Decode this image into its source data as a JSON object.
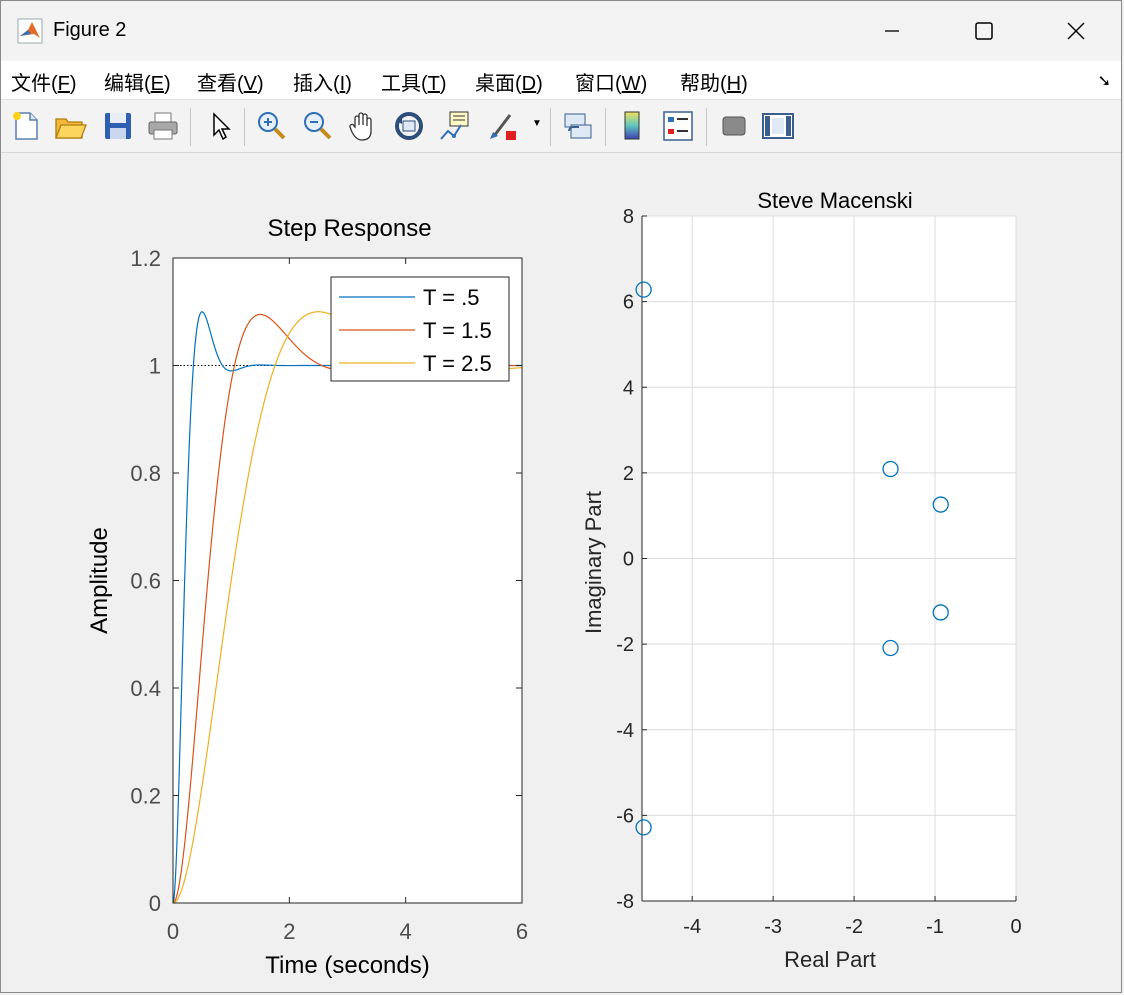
{
  "window": {
    "title": "Figure 2"
  },
  "menu": [
    {
      "label": "文件(",
      "key": "F",
      "tail": ")"
    },
    {
      "label": "编辑(",
      "key": "E",
      "tail": ")"
    },
    {
      "label": "查看(",
      "key": "V",
      "tail": ")"
    },
    {
      "label": "插入(",
      "key": "I",
      "tail": ")"
    },
    {
      "label": "工具(",
      "key": "T",
      "tail": ")"
    },
    {
      "label": "桌面(",
      "key": "D",
      "tail": ")"
    },
    {
      "label": "窗口(",
      "key": "W",
      "tail": ")"
    },
    {
      "label": "帮助(",
      "key": "H",
      "tail": ")"
    }
  ],
  "toolbar": [
    "new-figure-icon",
    "open-file-icon",
    "save-icon",
    "print-icon",
    "pointer-icon",
    "zoom-in-icon",
    "zoom-out-icon",
    "pan-hand-icon",
    "rotate-3d-icon",
    "data-cursor-icon",
    "brush-icon",
    "link-plot-icon",
    "colorbar-icon",
    "legend-icon",
    "hide-plot-tools-icon",
    "show-plot-tools-icon"
  ],
  "chart_data": [
    {
      "type": "line",
      "title": "Step Response",
      "xlabel": "Time (seconds)",
      "ylabel": "Amplitude",
      "xlim": [
        0,
        6
      ],
      "ylim": [
        0,
        1.2
      ],
      "xticks": [
        "0",
        "2",
        "4",
        "6"
      ],
      "yticks": [
        "0",
        "0.2",
        "0.4",
        "0.6",
        "0.8",
        "1",
        "1.2"
      ],
      "legend_position": "top-right",
      "grid": false,
      "series": [
        {
          "name": "T = .5",
          "color": "#0072bd",
          "overshoot": 1.1,
          "peak_time": 0.5
        },
        {
          "name": "T = 1.5",
          "color": "#d95319",
          "overshoot": 1.095,
          "peak_time": 1.5
        },
        {
          "name": "T = 2.5",
          "color": "#edb120",
          "overshoot": 1.1,
          "peak_time": 2.5
        }
      ]
    },
    {
      "type": "scatter",
      "title": "Steve Macenski",
      "xlabel": "Real Part",
      "ylabel": "Imaginary Part",
      "xlim": [
        -4.62,
        0
      ],
      "ylim": [
        -8,
        8
      ],
      "xticks": [
        "-4",
        "-3",
        "-2",
        "-1",
        "0"
      ],
      "yticks": [
        "-8",
        "-6",
        "-4",
        "-2",
        "0",
        "2",
        "4",
        "6",
        "8"
      ],
      "grid": true,
      "marker_color": "#0072bd",
      "points": [
        {
          "x": -4.6,
          "y": 6.28
        },
        {
          "x": -4.6,
          "y": -6.28
        },
        {
          "x": -1.55,
          "y": 2.09
        },
        {
          "x": -1.55,
          "y": -2.09
        },
        {
          "x": -0.93,
          "y": 1.26
        },
        {
          "x": -0.93,
          "y": -1.26
        }
      ]
    }
  ]
}
